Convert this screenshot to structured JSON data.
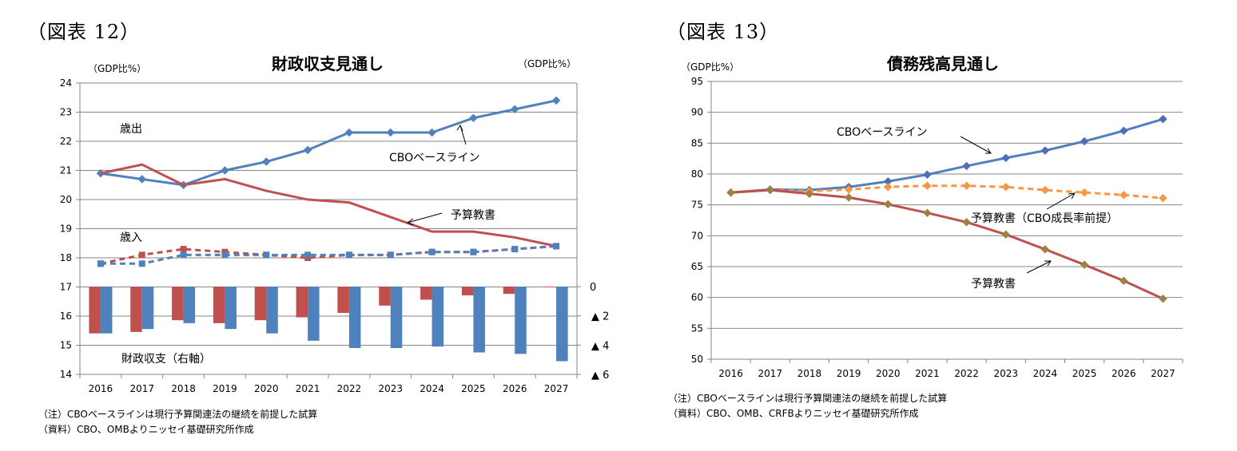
{
  "left": {
    "figure_label": "（図表 12）",
    "notes": [
      "（注）CBOベースラインは現行予算関連法の継続を前提した試算",
      "（資料）CBO、OMBよりニッセイ基礎研究所作成"
    ],
    "chart_data": {
      "type": "line",
      "title": "財政収支見通し",
      "ylabel_left": "（GDP比%）",
      "ylabel_right": "（GDP比%）",
      "categories": [
        "2016",
        "2017",
        "2018",
        "2019",
        "2020",
        "2021",
        "2022",
        "2023",
        "2024",
        "2025",
        "2026",
        "2027"
      ],
      "ylim": [
        14,
        24
      ],
      "yticks": [
        "14",
        "15",
        "16",
        "17",
        "18",
        "19",
        "20",
        "21",
        "22",
        "23",
        "24"
      ],
      "y2lim": [
        -6,
        0
      ],
      "y2ticks": [
        "0",
        "▲ 2",
        "▲ 4",
        "▲ 6"
      ],
      "grid": true,
      "series": [
        {
          "name": "歳出 CBOベースライン",
          "style": "solid",
          "color": "#4f81bd",
          "marker": "diamond",
          "values": [
            20.9,
            20.7,
            20.5,
            21.0,
            21.3,
            21.7,
            22.3,
            22.3,
            22.3,
            22.8,
            23.1,
            23.4
          ]
        },
        {
          "name": "歳出 予算教書",
          "style": "solid",
          "color": "#c0504d",
          "marker": "none",
          "values": [
            20.9,
            21.2,
            20.5,
            20.7,
            20.3,
            20.0,
            19.9,
            19.4,
            18.9,
            18.9,
            18.7,
            18.4
          ]
        },
        {
          "name": "歳入 予算教書",
          "style": "dashed",
          "color": "#c0504d",
          "marker": "square",
          "values": [
            17.8,
            18.1,
            18.3,
            18.2,
            18.1,
            18.0,
            18.1,
            18.1,
            18.2,
            18.2,
            18.3,
            18.4
          ]
        },
        {
          "name": "歳入 CBOベースライン",
          "style": "dashed",
          "color": "#4f81bd",
          "marker": "square",
          "values": [
            17.8,
            17.8,
            18.1,
            18.1,
            18.1,
            18.1,
            18.1,
            18.1,
            18.2,
            18.2,
            18.3,
            18.4
          ]
        }
      ],
      "bars": [
        {
          "name": "財政収支 予算教書",
          "axis": "right",
          "color": "#c0504d",
          "values": [
            -3.2,
            -3.1,
            -2.3,
            -2.5,
            -2.3,
            -2.1,
            -1.8,
            -1.3,
            -0.9,
            -0.6,
            -0.5,
            -0.05
          ]
        },
        {
          "name": "財政収支 CBOベースライン",
          "axis": "right",
          "color": "#4f81bd",
          "values": [
            -3.2,
            -2.9,
            -2.5,
            -2.9,
            -3.2,
            -3.7,
            -4.2,
            -4.2,
            -4.1,
            -4.5,
            -4.6,
            -5.1
          ]
        }
      ],
      "annotations": [
        "歳出",
        "歳入",
        "CBOベースライン",
        "予算教書",
        "財政収支（右軸）"
      ]
    }
  },
  "right": {
    "figure_label": "（図表 13）",
    "notes": [
      "（注）CBOベースラインは現行予算関連法の継続を前提した試算",
      "（資料）CBO、OMB、CRFBよりニッセイ基礎研究所作成"
    ],
    "chart_data": {
      "type": "line",
      "title": "債務残高見通し",
      "ylabel": "（GDP比%）",
      "categories": [
        "2016",
        "2017",
        "2018",
        "2019",
        "2020",
        "2021",
        "2022",
        "2023",
        "2024",
        "2025",
        "2026",
        "2027"
      ],
      "ylim": [
        50,
        95
      ],
      "yticks": [
        "50",
        "55",
        "60",
        "65",
        "70",
        "75",
        "80",
        "85",
        "90",
        "95"
      ],
      "grid": true,
      "series": [
        {
          "name": "CBOベースライン",
          "style": "solid",
          "color": "#4f81bd",
          "marker": "diamond",
          "marker_color": "#4f6eb5",
          "values": [
            77.0,
            77.5,
            77.4,
            77.9,
            78.8,
            79.9,
            81.3,
            82.6,
            83.8,
            85.3,
            87.0,
            88.9
          ]
        },
        {
          "name": "予算教書（CBO成長率前提）",
          "style": "dashed",
          "color": "#f79646",
          "marker": "diamond",
          "marker_color": "#f79646",
          "values": [
            77.0,
            77.4,
            77.2,
            77.5,
            77.9,
            78.1,
            78.1,
            77.9,
            77.4,
            77.0,
            76.6,
            76.1
          ]
        },
        {
          "name": "予算教書",
          "style": "solid",
          "color": "#c0504d",
          "marker": "diamond",
          "marker_color": "#9c8240",
          "values": [
            77.0,
            77.4,
            76.8,
            76.2,
            75.1,
            73.7,
            72.2,
            70.2,
            67.8,
            65.3,
            62.7,
            59.8
          ]
        }
      ],
      "annotations": [
        "CBOベースライン",
        "予算教書（CBO成長率前提）",
        "予算教書"
      ]
    }
  }
}
